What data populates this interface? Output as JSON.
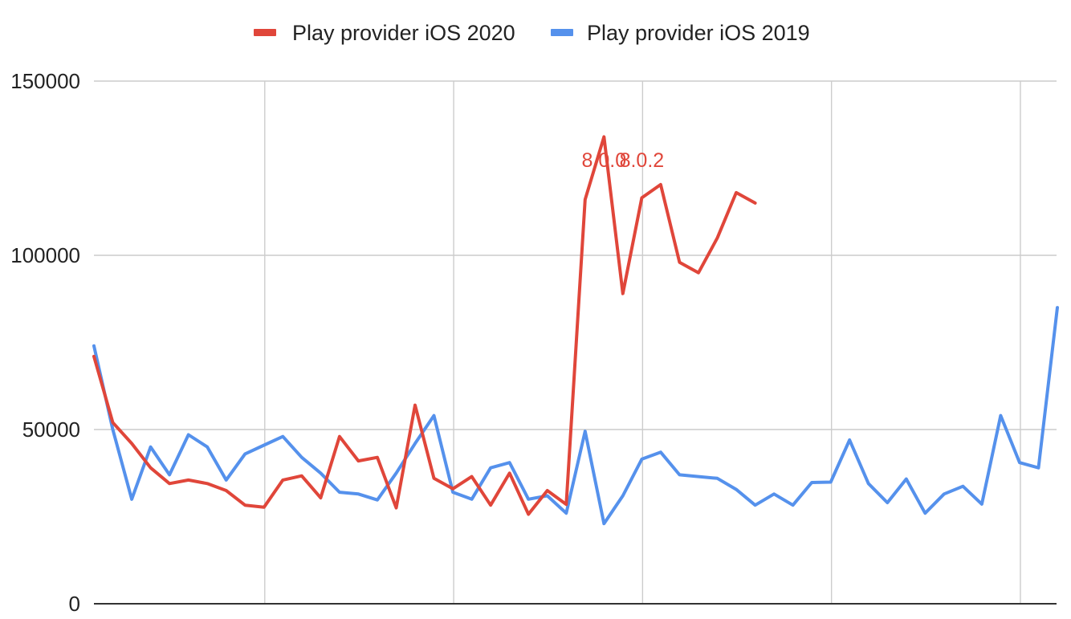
{
  "chart_data": {
    "type": "line",
    "title": "",
    "xlabel": "",
    "ylabel": "",
    "ylim": [
      0,
      150000
    ],
    "y_ticks": [
      "0",
      "50000",
      "100000",
      "150000"
    ],
    "y_tick_values": [
      0,
      50000,
      100000,
      150000
    ],
    "x_count": 52,
    "vertical_grid_at_index": [
      9,
      19,
      29,
      39,
      49
    ],
    "grid": true,
    "legend_position": "top-center",
    "series": [
      {
        "name": "Play provider iOS 2020",
        "color": "#e0463a",
        "values": [
          71000,
          52000,
          46000,
          39000,
          34500,
          35500,
          34500,
          32500,
          28300,
          27700,
          35500,
          36700,
          30400,
          48000,
          41000,
          42000,
          27500,
          57000,
          36000,
          33000,
          36500,
          28300,
          37500,
          25700,
          32500,
          28500,
          116000,
          134000,
          89000,
          116500,
          120300,
          98000,
          95000,
          105000,
          118000,
          115000
        ]
      },
      {
        "name": "Play provider iOS 2019",
        "color": "#5591ec",
        "values": [
          74000,
          50000,
          30000,
          45000,
          37000,
          48500,
          45000,
          35500,
          43000,
          45500,
          48000,
          42000,
          37500,
          32000,
          31500,
          29800,
          37500,
          46000,
          54000,
          32000,
          30000,
          39000,
          40500,
          30000,
          31000,
          26000,
          49500,
          23000,
          31000,
          41500,
          43500,
          37000,
          36500,
          36000,
          32800,
          28300,
          31500,
          28300,
          34800,
          34900,
          47000,
          34500,
          29000,
          35800,
          26000,
          31500,
          33700,
          28600,
          54000,
          40500,
          39000,
          85000
        ]
      }
    ],
    "annotations": [
      {
        "text": "8.0.0",
        "series": 0,
        "at_index": 27
      },
      {
        "text": "8.0.2",
        "series": 0,
        "at_index": 29
      }
    ]
  }
}
